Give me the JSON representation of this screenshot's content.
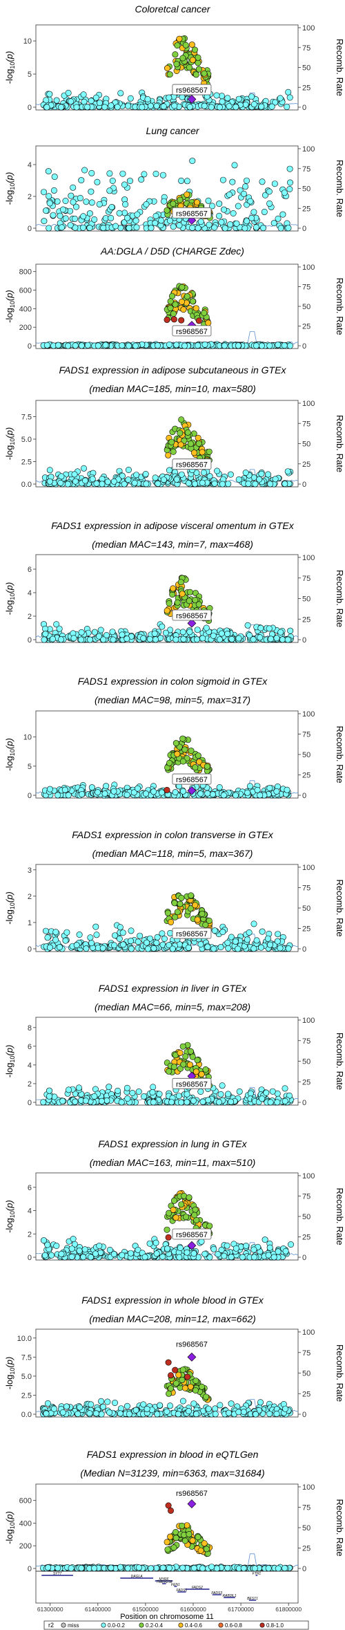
{
  "chart_data": {
    "type": "scatter",
    "snp_label": "rs968567",
    "ylabel": "-log10(p)",
    "y2label": "Recomb. Rate",
    "y2lim": [
      0,
      100
    ],
    "y2ticks": [
      0,
      25,
      50,
      75,
      100
    ],
    "x_axis_title": "Position on chromosome 11",
    "xlim": [
      61270000,
      61820000
    ],
    "xticks": [
      61300000,
      61400000,
      61500000,
      61600000,
      61700000,
      61800000
    ],
    "xtick_labels": [
      "61300000",
      "61400000",
      "61500000",
      "61600000",
      "61700000",
      "61800000"
    ],
    "snp_position": 61597000,
    "legend": {
      "title": "r2",
      "entries": [
        {
          "label": "miss",
          "color": "#bfbfbf"
        },
        {
          "label": "0.0-0.2",
          "color": "#7fffff"
        },
        {
          "label": "0.2-0.4",
          "color": "#7fcf3f"
        },
        {
          "label": "0.4-0.6",
          "color": "#ffbf1f"
        },
        {
          "label": "0.6-0.8",
          "color": "#ef6f2f"
        },
        {
          "label": "0.8-1.0",
          "color": "#bf2f1f"
        }
      ]
    },
    "index_color": "#8b1fdf",
    "panels": [
      {
        "title": "Coloretcal cancer",
        "subtitle": "",
        "ylim": [
          0,
          12
        ],
        "yticks": [
          0,
          5,
          10
        ],
        "ytick_labels": [
          "0",
          "5",
          "10"
        ],
        "peak": 10.8,
        "bg": 1.6,
        "index_y": 1.2,
        "label_y": 2.5,
        "label_above": false,
        "red": []
      },
      {
        "title": "Lung cancer",
        "subtitle": "",
        "ylim": [
          0,
          5
        ],
        "yticks": [
          0,
          2,
          4
        ],
        "ytick_labels": [
          "0",
          "2",
          "4"
        ],
        "peak": 2.2,
        "bg": 3.0,
        "index_y": 0.5,
        "label_y": 0.9,
        "label_above": false,
        "red": []
      },
      {
        "title": "AA:DGLA / D5D (CHARGE Zdec)",
        "subtitle": "",
        "ylim": [
          0,
          850
        ],
        "yticks": [
          0,
          200,
          400,
          600,
          800
        ],
        "ytick_labels": [
          "0",
          "200",
          "400",
          "600",
          "800"
        ],
        "peak": 680,
        "bg": 12,
        "index_y": 220,
        "label_y": 150,
        "label_above": false,
        "red": [
          [
            61545000,
            280
          ],
          [
            61560000,
            285
          ],
          [
            61575000,
            275
          ],
          [
            61612000,
            270
          ]
        ]
      },
      {
        "title": "FADS1 expression in adipose subcutaneous in GTEx",
        "subtitle": "(median MAC=185, min=10, max=580)",
        "ylim": [
          0,
          9
        ],
        "yticks": [
          0,
          2.5,
          5,
          7.5
        ],
        "ytick_labels": [
          "0.0",
          "2.5",
          "5.0",
          "7.5"
        ],
        "peak": 7.4,
        "bg": 1.2,
        "index_y": 2.2,
        "label_y": 2.1,
        "label_above": false,
        "red": []
      },
      {
        "title": "FADS1 expression in adipose visceral omentum in GTEx",
        "subtitle": "(median MAC=143, min=7, max=468)",
        "ylim": [
          0,
          7
        ],
        "yticks": [
          0,
          2,
          4,
          6
        ],
        "ytick_labels": [
          "0",
          "2",
          "4",
          "6"
        ],
        "peak": 5.3,
        "bg": 0.9,
        "index_y": 1.4,
        "label_y": 2.0,
        "label_above": false,
        "red": []
      },
      {
        "title": "FADS1 expression in colon sigmoid in GTEx",
        "subtitle": "(median MAC=98, min=5, max=317)",
        "ylim": [
          0,
          14
        ],
        "yticks": [
          0,
          5,
          10
        ],
        "ytick_labels": [
          "0",
          "5",
          "10"
        ],
        "peak": 10.3,
        "bg": 1.2,
        "index_y": 0.8,
        "label_y": 2.6,
        "label_above": false,
        "red": [
          [
            61545000,
            0.9
          ]
        ]
      },
      {
        "title": "FADS1 expression in colon transverse in GTEx",
        "subtitle": "(median MAC=118, min=5, max=367)",
        "ylim": [
          0,
          3.1
        ],
        "yticks": [
          0,
          1,
          2,
          3
        ],
        "ytick_labels": [
          "0",
          "1",
          "2",
          "3"
        ],
        "peak": 2.3,
        "bg": 0.6,
        "index_y": 0.6,
        "label_y": 0.55,
        "label_above": false,
        "red": []
      },
      {
        "title": "FADS1 expression in liver in GTEx",
        "subtitle": "(median MAC=66, min=5, max=208)",
        "ylim": [
          0,
          8.8
        ],
        "yticks": [
          0,
          2,
          4,
          6,
          8
        ],
        "ytick_labels": [
          "0",
          "2",
          "4",
          "6",
          "8"
        ],
        "peak": 6.3,
        "bg": 1.2,
        "index_y": 2.8,
        "label_y": 1.9,
        "label_above": false,
        "red": []
      },
      {
        "title": "FADS1 expression in lung in GTEx",
        "subtitle": "(median MAC=163, min=11, max=510)",
        "ylim": [
          0,
          7
        ],
        "yticks": [
          0,
          2,
          4,
          6
        ],
        "ytick_labels": [
          "0",
          "2",
          "4",
          "6"
        ],
        "peak": 5.7,
        "bg": 1.1,
        "index_y": 1.0,
        "label_y": 1.9,
        "label_above": false,
        "red": [
          [
            61548000,
            1.7
          ]
        ]
      },
      {
        "title": "FADS1 expression in whole blood in GTEx",
        "subtitle": "(median MAC=208, min=12, max=662)",
        "ylim": [
          0,
          10.8
        ],
        "yticks": [
          0,
          2.5,
          5,
          7.5,
          10
        ],
        "ytick_labels": [
          "0.0",
          "2.5",
          "5.0",
          "7.5",
          "10.0"
        ],
        "peak": 6.0,
        "bg": 1.2,
        "index_y": 7.5,
        "label_y": 9.1,
        "label_above": true,
        "red": [
          [
            61548000,
            6.8
          ],
          [
            61553000,
            5.1
          ],
          [
            61588000,
            4.9
          ],
          [
            61562000,
            5.8
          ]
        ]
      },
      {
        "title": "FADS1 expression in blood in eQTLGen",
        "subtitle": "(Median N=31239, min=6363, max=31684)",
        "ylim": [
          0,
          720
        ],
        "yticks": [
          0,
          200,
          400,
          600
        ],
        "ytick_labels": [
          "0",
          "200",
          "400",
          "600"
        ],
        "peak": 390,
        "bg": 10,
        "index_y": 570,
        "label_y": 660,
        "label_above": true,
        "red": [
          [
            61548000,
            555
          ],
          [
            61553000,
            510
          ]
        ]
      }
    ],
    "genes": [
      {
        "name": "SYT7",
        "start": 61282000,
        "end": 61348000,
        "row": 0
      },
      {
        "name": "DAGLA",
        "start": 61447000,
        "end": 61516000,
        "row": 1
      },
      {
        "name": "MYRF",
        "start": 61520000,
        "end": 61557000,
        "row": 2
      },
      {
        "name": "TMEM258",
        "start": 61535000,
        "end": 61543000,
        "row": 3
      },
      {
        "name": "FEN1",
        "start": 61560000,
        "end": 61566000,
        "row": 4
      },
      {
        "name": "FADS2",
        "start": 61583000,
        "end": 61634000,
        "row": 5
      },
      {
        "name": "FADS1",
        "start": 61567000,
        "end": 61585000,
        "row": 6
      },
      {
        "name": "FADS3",
        "start": 61640000,
        "end": 61659000,
        "row": 7
      },
      {
        "name": "RAB3IL1",
        "start": 61664000,
        "end": 61688000,
        "row": 8
      },
      {
        "name": "BEST1",
        "start": 61717000,
        "end": 61732000,
        "row": 9
      },
      {
        "name": "FTH1",
        "start": 61731000,
        "end": 61735000,
        "row": 0
      }
    ]
  }
}
